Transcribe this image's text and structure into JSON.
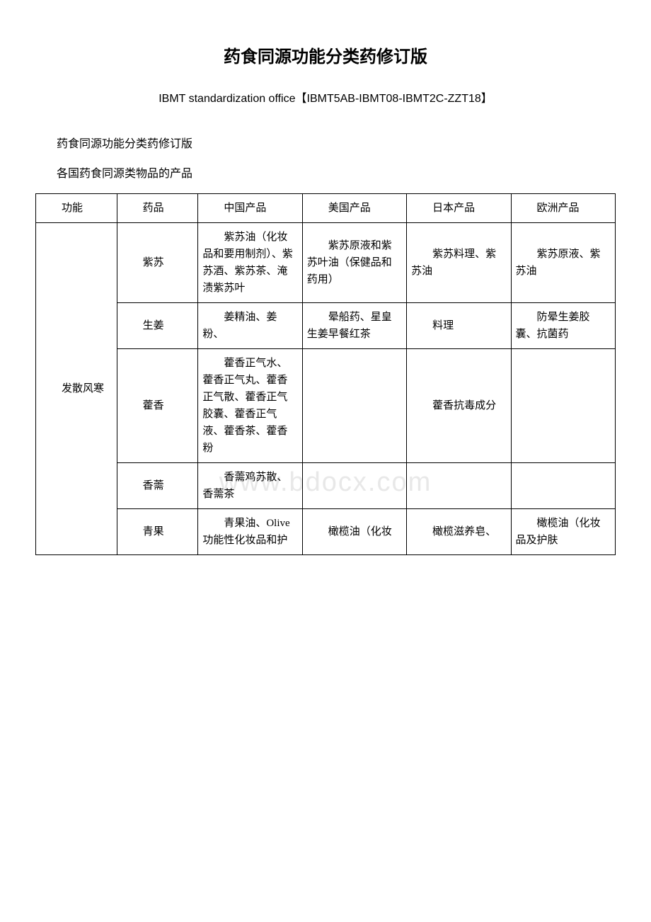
{
  "title": "药食同源功能分类药修订版",
  "subtitle": "IBMT standardization office【IBMT5AB-IBMT08-IBMT2C-ZZT18】",
  "para1": "药食同源功能分类药修订版",
  "para2": "各国药食同源类物品的产品",
  "watermark": "www.bdocx.com",
  "table": {
    "header": {
      "func": "功能",
      "drug": "药品",
      "china": "中国产品",
      "usa": "美国产品",
      "japan": "日本产品",
      "europe": "欧洲产品"
    },
    "func_label": "发散风寒",
    "rows": [
      {
        "drug": "紫苏",
        "china": "紫苏油（化妆品和要用制剂）、紫苏酒、紫苏茶、淹渍紫苏叶",
        "usa": "紫苏原液和紫苏叶油（保健品和药用）",
        "japan": "紫苏料理、紫苏油",
        "europe": "紫苏原液、紫苏油"
      },
      {
        "drug": "生姜",
        "china": "姜精油、姜粉、",
        "usa": "晕船药、星皇生姜早餐红茶",
        "japan": "料理",
        "europe": "防晕生姜胶囊、抗菌药"
      },
      {
        "drug": "藿香",
        "china": "藿香正气水、藿香正气丸、藿香正气散、藿香正气胶囊、藿香正气液、藿香茶、藿香粉",
        "usa": "",
        "japan": "藿香抗毒成分",
        "europe": ""
      },
      {
        "drug": "香薷",
        "china": "香薷鸡苏散、香薷茶",
        "usa": "",
        "japan": "",
        "europe": ""
      },
      {
        "drug": "青果",
        "china": "青果油、Olive功能性化妆品和护",
        "usa": "橄榄油（化妆",
        "japan": "橄榄滋养皂、",
        "europe": "橄榄油（化妆品及护肤"
      }
    ]
  }
}
